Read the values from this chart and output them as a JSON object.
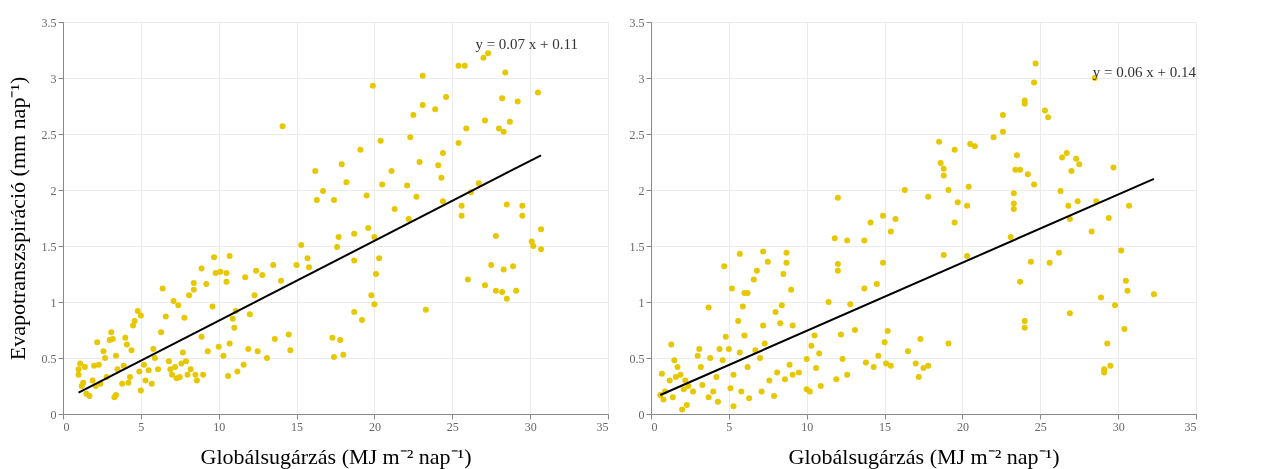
{
  "chart_data": [
    {
      "type": "scatter",
      "xlabel": "Globálsugárzás (MJ m⁻² nap⁻¹)",
      "ylabel": "Evapotranszspiráció (mm nap⁻¹)",
      "xlim": [
        0,
        35
      ],
      "ylim": [
        0,
        3.5
      ],
      "xticks": [
        0,
        5,
        10,
        15,
        20,
        25,
        30,
        35
      ],
      "yticks": [
        0,
        0.5,
        1,
        1.5,
        2,
        2.5,
        3,
        3.5
      ],
      "grid": true,
      "annotations": [
        "y = 0.07 x + 0.11"
      ],
      "series": [
        {
          "type": "scatter",
          "marker": "circle",
          "color": "#e6c700",
          "x": [
            1.0,
            1.0,
            1.1,
            1.2,
            1.3,
            1.4,
            1.5,
            1.7,
            1.9,
            2.0,
            2.1,
            2.2,
            2.3,
            2.4,
            2.6,
            2.7,
            2.8,
            3.0,
            3.1,
            3.2,
            3.3,
            3.4,
            3.4,
            3.5,
            3.8,
            3.9,
            4.0,
            4.1,
            4.3,
            4.4,
            4.5,
            4.6,
            4.8,
            4.9,
            5.0,
            5.0,
            5.2,
            5.5,
            5.7,
            5.8,
            5.9,
            6.1,
            6.3,
            6.4,
            6.6,
            6.8,
            7.0,
            7.1,
            7.2,
            7.4,
            7.5,
            7.7,
            7.8,
            7.9,
            8.0,
            8.1,
            8.4,
            8.4,
            8.6,
            8.9,
            8.9,
            9.2,
            9.3,
            9.6,
            9.7,
            9.8,
            10.0,
            10.1,
            10.3,
            10.5,
            10.5,
            10.6,
            10.7,
            10.7,
            10.9,
            11.0,
            11.1,
            11.2,
            11.6,
            11.7,
            11.9,
            12.0,
            12.3,
            12.4,
            12.5,
            12.8,
            13.1,
            13.5,
            13.6,
            14.0,
            14.1,
            14.5,
            14.6,
            15.0,
            15.3,
            15.7,
            15.8,
            16.2,
            16.3,
            16.7,
            17.3,
            17.4,
            17.4,
            17.6,
            17.7,
            17.8,
            17.9,
            18.0,
            18.2,
            18.7,
            18.7,
            18.7,
            19.1,
            19.2,
            19.5,
            19.6,
            19.8,
            19.9,
            20.0,
            20.0,
            20.1,
            20.3,
            20.4,
            20.5,
            21.1,
            21.3,
            22.1,
            22.2,
            22.3,
            22.5,
            22.7,
            22.9,
            23.1,
            23.1,
            23.3,
            23.9,
            24.1,
            24.3,
            24.4,
            24.4,
            24.6,
            25.4,
            25.4,
            25.6,
            25.6,
            25.8,
            25.9,
            26.0,
            26.2,
            26.7,
            27.0,
            27.1,
            27.1,
            27.3,
            27.5,
            27.8,
            27.8,
            28.0,
            28.2,
            28.2,
            28.3,
            28.3,
            28.4,
            28.5,
            28.5,
            28.7,
            28.9,
            29.1,
            29.2,
            29.5,
            29.5,
            30.1,
            30.2,
            30.5,
            30.7,
            30.7,
            6.9,
            7.3,
            7.6,
            8.2,
            8.5,
            9.0,
            5.3,
            4.2
          ],
          "values": [
            0.35,
            0.4,
            0.45,
            0.25,
            0.28,
            0.42,
            0.18,
            0.16,
            0.3,
            0.43,
            0.25,
            0.64,
            0.44,
            0.27,
            0.56,
            0.5,
            0.33,
            0.66,
            0.73,
            0.67,
            0.15,
            0.17,
            0.52,
            0.4,
            0.27,
            0.43,
            0.68,
            0.62,
            0.33,
            0.57,
            0.79,
            0.83,
            0.92,
            0.38,
            0.21,
            0.88,
            0.44,
            0.39,
            0.27,
            0.58,
            0.5,
            0.4,
            0.73,
            1.12,
            0.87,
            0.47,
            0.35,
            1.01,
            0.42,
            0.97,
            0.33,
            0.55,
            0.86,
            0.47,
            0.35,
            1.06,
            1.11,
            1.17,
            0.3,
            1.3,
            0.69,
            1.16,
            0.56,
            0.96,
            1.4,
            1.26,
            0.6,
            1.27,
            0.52,
            1.26,
            1.18,
            0.34,
            1.41,
            0.63,
            0.85,
            0.77,
            0.92,
            0.38,
            0.44,
            1.22,
            0.58,
            0.89,
            1.06,
            1.28,
            0.56,
            1.24,
            0.5,
            1.33,
            0.67,
            1.19,
            2.57,
            0.71,
            0.57,
            1.33,
            1.51,
            1.39,
            1.31,
            2.17,
            1.91,
            1.99,
            0.68,
            0.51,
            1.91,
            1.49,
            1.58,
            0.66,
            2.23,
            0.53,
            2.07,
            1.37,
            1.61,
            0.91,
            2.36,
            0.84,
            1.95,
            1.66,
            1.06,
            2.93,
            1.58,
            0.98,
            1.25,
            1.39,
            2.44,
            2.05,
            2.17,
            1.83,
            2.04,
            1.74,
            2.47,
            2.67,
            1.94,
            2.25,
            3.02,
            2.76,
            0.93,
            2.72,
            2.22,
            2.11,
            1.9,
            2.33,
            2.83,
            2.42,
            3.11,
            1.77,
            1.86,
            3.11,
            2.55,
            1.2,
            1.98,
            2.06,
            3.18,
            2.62,
            1.15,
            3.22,
            1.33,
            1.59,
            1.1,
            2.55,
            1.09,
            2.82,
            2.52,
            1.29,
            3.05,
            1.03,
            1.87,
            2.61,
            1.32,
            1.1,
            2.79,
            1.77,
            1.86,
            1.54,
            1.5,
            2.87,
            1.65,
            1.47,
            0.4,
            0.32,
            0.45,
            0.4,
            0.35,
            0.35,
            0.3,
            0.28
          ]
        },
        {
          "type": "line",
          "color": "#000000",
          "x": [
            1.0,
            30.7
          ],
          "values": [
            0.19,
            2.31
          ]
        }
      ]
    },
    {
      "type": "scatter",
      "xlabel": "Globálsugárzás (MJ m⁻² nap⁻¹)",
      "xlim": [
        0,
        35
      ],
      "ylim": [
        0,
        3.5
      ],
      "xticks": [
        0,
        5,
        10,
        15,
        20,
        25,
        30,
        35
      ],
      "yticks": [
        0,
        0.5,
        1,
        1.5,
        2,
        2.5,
        3,
        3.5
      ],
      "grid": true,
      "annotations": [
        "y = 0.06 x + 0.14"
      ],
      "series": [
        {
          "type": "scatter",
          "marker": "circle",
          "color": "#e6c700",
          "x": [
            0.6,
            0.7,
            0.8,
            0.9,
            1.2,
            1.3,
            1.4,
            1.5,
            1.6,
            1.7,
            1.9,
            2.0,
            2.1,
            2.2,
            2.3,
            2.4,
            2.7,
            3.0,
            3.1,
            3.2,
            3.3,
            3.7,
            3.7,
            3.8,
            4.0,
            4.2,
            4.3,
            4.4,
            4.6,
            4.7,
            4.8,
            5.0,
            5.1,
            5.2,
            5.3,
            5.3,
            5.6,
            5.7,
            5.7,
            5.8,
            5.9,
            6.0,
            6.0,
            6.2,
            6.2,
            6.3,
            6.6,
            6.7,
            6.8,
            7.0,
            7.1,
            7.2,
            7.2,
            7.3,
            7.5,
            7.6,
            7.9,
            8.0,
            8.1,
            8.3,
            8.4,
            8.5,
            8.6,
            8.7,
            8.7,
            8.9,
            9.0,
            9.1,
            9.1,
            9.5,
            10.0,
            10.0,
            10.2,
            10.3,
            10.5,
            10.6,
            10.8,
            10.9,
            11.4,
            11.8,
            11.9,
            12.0,
            12.0,
            12.0,
            12.2,
            12.3,
            12.6,
            12.6,
            12.8,
            13.1,
            13.7,
            13.7,
            13.8,
            14.1,
            14.3,
            14.5,
            14.6,
            14.9,
            14.9,
            15.0,
            15.2,
            15.1,
            15.4,
            15.4,
            15.7,
            16.3,
            16.5,
            17.0,
            17.2,
            17.3,
            17.5,
            17.8,
            17.8,
            18.5,
            18.6,
            18.8,
            18.8,
            18.8,
            19.1,
            19.1,
            19.5,
            19.5,
            19.7,
            20.3,
            20.3,
            20.4,
            20.5,
            20.8,
            22.0,
            22.6,
            22.6,
            23.1,
            23.3,
            23.3,
            23.3,
            23.4,
            23.5,
            23.7,
            23.7,
            24.0,
            24.0,
            24.0,
            24.0,
            24.2,
            24.4,
            24.6,
            24.6,
            24.7,
            25.3,
            25.5,
            25.6,
            26.2,
            26.3,
            26.4,
            26.7,
            26.8,
            26.9,
            26.9,
            27.0,
            27.3,
            27.4,
            27.5,
            28.3,
            28.5,
            28.6,
            28.9,
            29.1,
            29.1,
            29.3,
            29.4,
            29.5,
            29.7,
            29.8,
            30.2,
            30.4,
            30.5,
            30.6,
            30.7,
            32.3
          ],
          "values": [
            0.17,
            0.36,
            0.13,
            0.2,
            0.3,
            0.62,
            0.15,
            0.48,
            0.33,
            0.42,
            0.35,
            0.04,
            0.22,
            0.3,
            0.08,
            0.25,
            0.2,
            0.52,
            0.58,
            0.42,
            0.26,
            0.15,
            0.95,
            0.5,
            0.2,
            0.33,
            0.11,
            0.58,
            0.48,
            1.32,
            0.69,
            0.58,
            0.23,
            1.12,
            0.35,
            0.07,
            0.83,
            1.43,
            0.55,
            0.2,
            0.96,
            1.08,
            0.7,
            1.08,
            0.42,
            0.14,
            1.2,
            0.57,
            1.28,
            0.5,
            0.2,
            1.45,
            0.79,
            0.63,
            1.36,
            0.3,
            0.16,
            0.91,
            0.37,
            0.81,
            0.97,
            1.25,
            0.31,
            1.44,
            1.35,
            0.44,
            1.11,
            0.79,
            0.35,
            0.37,
            0.49,
            0.22,
            0.2,
            0.61,
            0.7,
            0.41,
            0.54,
            0.25,
            1.0,
            1.57,
            0.31,
            1.93,
            1.34,
            1.28,
            0.71,
            0.49,
            1.55,
            0.35,
            0.98,
            0.75,
            1.55,
            1.12,
            0.46,
            1.71,
            0.42,
            1.16,
            0.52,
            1.77,
            1.35,
            0.64,
            0.74,
            0.45,
            1.63,
            0.43,
            1.74,
            2.0,
            0.56,
            0.45,
            0.33,
            0.67,
            0.41,
            1.94,
            0.43,
            2.43,
            2.24,
            2.19,
            2.13,
            1.42,
            2.0,
            0.63,
            2.36,
            1.71,
            1.89,
            1.41,
            1.86,
            2.03,
            2.41,
            2.39,
            2.47,
            2.67,
            2.52,
            1.58,
            1.83,
            1.88,
            1.97,
            2.18,
            2.31,
            2.18,
            1.18,
            2.8,
            2.77,
            0.83,
            0.77,
            2.14,
            1.36,
            2.96,
            2.05,
            3.13,
            2.71,
            2.65,
            1.35,
            1.44,
            1.99,
            2.29,
            2.33,
            1.86,
            1.74,
            0.9,
            2.17,
            2.28,
            1.9,
            2.23,
            1.63,
            3.0,
            1.9,
            1.04,
            0.4,
            0.37,
            0.63,
            1.75,
            0.43,
            2.2,
            0.97,
            1.46,
            0.76,
            1.19,
            1.1,
            1.86,
            1.07
          ]
        },
        {
          "type": "line",
          "color": "#000000",
          "x": [
            0.6,
            32.3
          ],
          "values": [
            0.17,
            2.1
          ]
        }
      ]
    }
  ]
}
